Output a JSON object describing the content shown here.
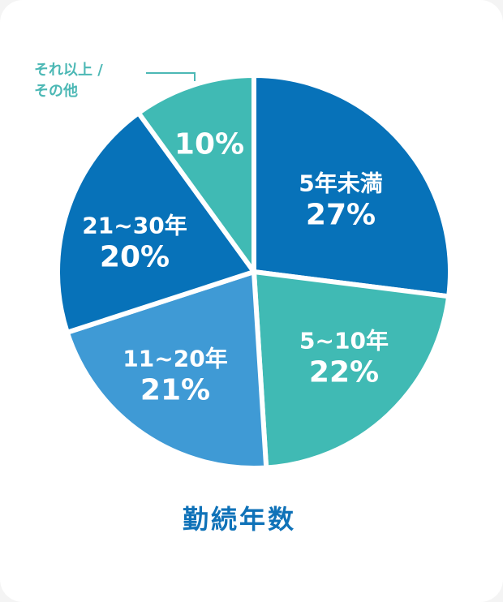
{
  "chart_data": {
    "type": "pie",
    "title": "勤続年数",
    "categories": [
      "5年未満",
      "5~10年",
      "11~20年",
      "21~30年",
      "それ以上 / その他"
    ],
    "values": [
      27,
      22,
      21,
      20,
      10
    ],
    "value_labels": [
      "27%",
      "22%",
      "21%",
      "20%",
      "10%"
    ],
    "colors": [
      "#0772b9",
      "#40bab4",
      "#3f9ad5",
      "#0772b9",
      "#40bab4"
    ],
    "legend": "none",
    "start": "top, clockwise"
  },
  "outside_label": "それ以上 /\nその他"
}
